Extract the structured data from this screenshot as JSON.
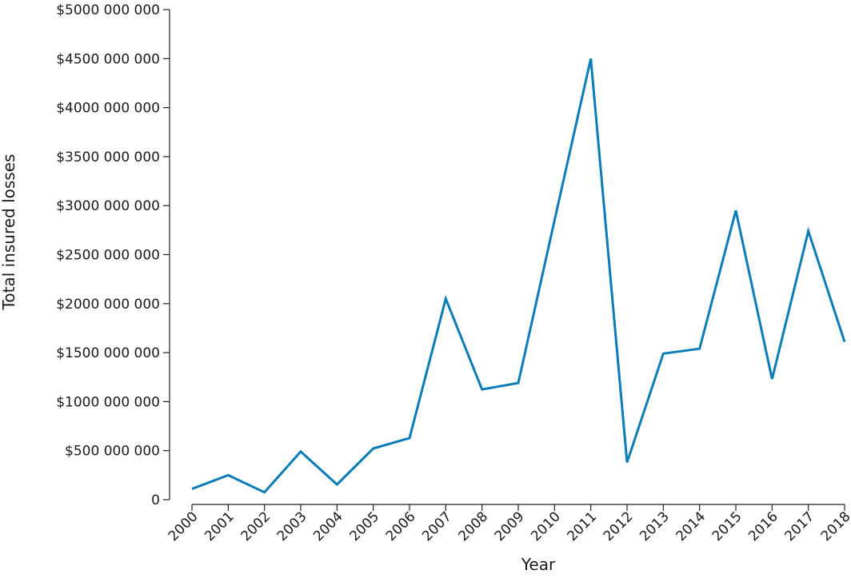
{
  "chart_data": {
    "type": "line",
    "x_label": "Year",
    "y_label": "Total insured losses",
    "categories": [
      "2000",
      "2001",
      "2002",
      "2003",
      "2004",
      "2005",
      "2006",
      "2007",
      "2008",
      "2009",
      "2010",
      "2011",
      "2012",
      "2013",
      "2014",
      "2015",
      "2016",
      "2017",
      "2018"
    ],
    "series": [
      {
        "color": "#0a7db8",
        "values": [
          110000000,
          250000000,
          75000000,
          490000000,
          155000000,
          522000000,
          628000000,
          2050000000,
          1125000000,
          1190000000,
          2850000000,
          4500000000,
          380000000,
          1490000000,
          1540000000,
          2950000000,
          1230000000,
          2740000000,
          1610000000
        ]
      }
    ],
    "ylim": [
      0,
      5000000000
    ],
    "yticks": [
      0,
      {
        "value": 500000000,
        "label": "$500 000 000"
      },
      {
        "value": 1000000000,
        "label": "$1000 000 000"
      },
      {
        "value": 1500000000,
        "label": "$1500 000 000"
      },
      {
        "value": 2000000000,
        "label": "$2000 000 000"
      },
      {
        "value": 2500000000,
        "label": "$2500 000 000"
      },
      {
        "value": 3000000000,
        "label": "$3000 000 000"
      },
      {
        "value": 3500000000,
        "label": "$3500 000 000"
      },
      {
        "value": 4000000000,
        "label": "$4000 000 000"
      },
      {
        "value": 4500000000,
        "label": "$4500 000 000"
      },
      {
        "value": 5000000000,
        "label": "$5000 000 000"
      }
    ],
    "grid": false
  }
}
